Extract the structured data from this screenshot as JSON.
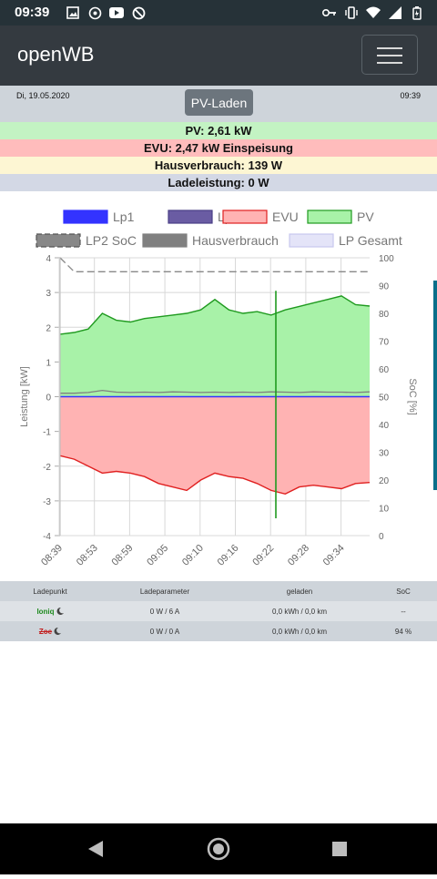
{
  "status_bar": {
    "time": "09:39",
    "left_icons": [
      "image-icon",
      "whatsapp-icon",
      "youtube-icon",
      "sync-off-icon"
    ],
    "right_icons": [
      "key-icon",
      "vibrate-icon",
      "wifi-icon",
      "signal-icon",
      "battery-icon"
    ]
  },
  "navbar": {
    "brand": "openWB",
    "menu_icon": "hamburger-icon"
  },
  "info": {
    "date": "Di, 19.05.2020",
    "time": "09:39",
    "mode_button": "PV-Laden"
  },
  "summary": {
    "pv": "PV: 2,61 kW",
    "evu": "EVU: 2,47 kW Einspeisung",
    "haus": "Hausverbrauch: 139 W",
    "lade": "Ladeleistung: 0 W"
  },
  "colors": {
    "pv_bg": "#c3f3c3",
    "evu_bg": "#ffbcbc",
    "haus_bg": "#fdf6d3",
    "lade_bg": "#d3d8e5",
    "lp1": "#3333ff",
    "lp2": "#6a5ca3",
    "evu_fill": "#ffb3b3",
    "evu_line": "#e02020",
    "pv_fill": "#a8f2a8",
    "pv_line": "#1f9a1f",
    "haus": "#808080"
  },
  "legend": [
    {
      "label": "Lp1",
      "icon": "lp1-legend-swatch"
    },
    {
      "label": "Lp2",
      "icon": "lp2-legend-swatch"
    },
    {
      "label": "EVU",
      "icon": "evu-legend-swatch"
    },
    {
      "label": "PV",
      "icon": "pv-legend-swatch"
    },
    {
      "label": "LP2 SoC",
      "icon": "soc-legend-swatch"
    },
    {
      "label": "Hausverbrauch",
      "icon": "haus-legend-swatch"
    },
    {
      "label": "LP Gesamt",
      "icon": "lpgesamt-legend-swatch"
    }
  ],
  "chart_data": {
    "type": "area",
    "ylabel": "Leistung [kW]",
    "y2label": "SoC [%]",
    "ylim": [
      -4,
      4
    ],
    "y2lim": [
      0,
      100
    ],
    "yticks": [
      "4",
      "3",
      "2",
      "1",
      "0",
      "-1",
      "-2",
      "-3",
      "-4"
    ],
    "y2ticks": [
      "100",
      "90",
      "80",
      "70",
      "60",
      "50",
      "40",
      "30",
      "20",
      "10",
      "0"
    ],
    "xticks": [
      "08:39",
      "08:53",
      "08:59",
      "09:05",
      "09:10",
      "09:16",
      "09:22",
      "09:28",
      "09:34"
    ],
    "grid": true,
    "legend_position": "top",
    "series": [
      {
        "name": "PV",
        "values": [
          1.8,
          1.85,
          1.95,
          2.4,
          2.2,
          2.15,
          2.25,
          2.3,
          2.35,
          2.4,
          2.5,
          2.8,
          2.5,
          2.4,
          2.45,
          2.35,
          2.5,
          2.6,
          2.7,
          2.8,
          2.9,
          2.65,
          2.61
        ]
      },
      {
        "name": "EVU",
        "values": [
          -1.7,
          -1.8,
          -2.0,
          -2.2,
          -2.15,
          -2.2,
          -2.3,
          -2.5,
          -2.6,
          -2.7,
          -2.4,
          -2.2,
          -2.3,
          -2.35,
          -2.5,
          -2.7,
          -2.8,
          -2.6,
          -2.55,
          -2.6,
          -2.65,
          -2.5,
          -2.47
        ]
      },
      {
        "name": "Hausverbrauch",
        "values": [
          0.1,
          0.1,
          0.12,
          0.18,
          0.13,
          0.12,
          0.13,
          0.12,
          0.14,
          0.13,
          0.12,
          0.13,
          0.12,
          0.13,
          0.12,
          0.14,
          0.13,
          0.12,
          0.14,
          0.13,
          0.13,
          0.12,
          0.14
        ]
      },
      {
        "name": "Lp1",
        "values": [
          0,
          0,
          0,
          0,
          0,
          0,
          0,
          0,
          0,
          0,
          0,
          0,
          0,
          0,
          0,
          0,
          0,
          0,
          0,
          0,
          0,
          0,
          0
        ]
      },
      {
        "name": "LP2 SoC",
        "values": [
          100,
          95,
          95,
          95,
          95,
          95,
          95,
          95,
          95,
          95,
          95,
          95,
          95,
          95,
          95,
          95,
          95,
          95,
          95,
          95,
          95,
          95,
          95
        ]
      }
    ]
  },
  "table": {
    "headers": [
      "Ladepunkt",
      "Ladeparameter",
      "geladen",
      "SoC"
    ],
    "rows": [
      {
        "name": "Ioniq",
        "param": "0 W / 6 A",
        "geladen": "0,0 kWh / 0,0 km",
        "soc": "--",
        "color": "#1e8a1e",
        "strike": false
      },
      {
        "name": "Zoe",
        "param": "0 W / 0 A",
        "geladen": "0,0 kWh / 0,0 km",
        "soc": "94 %",
        "color": "#c21f1f",
        "strike": true
      }
    ]
  }
}
